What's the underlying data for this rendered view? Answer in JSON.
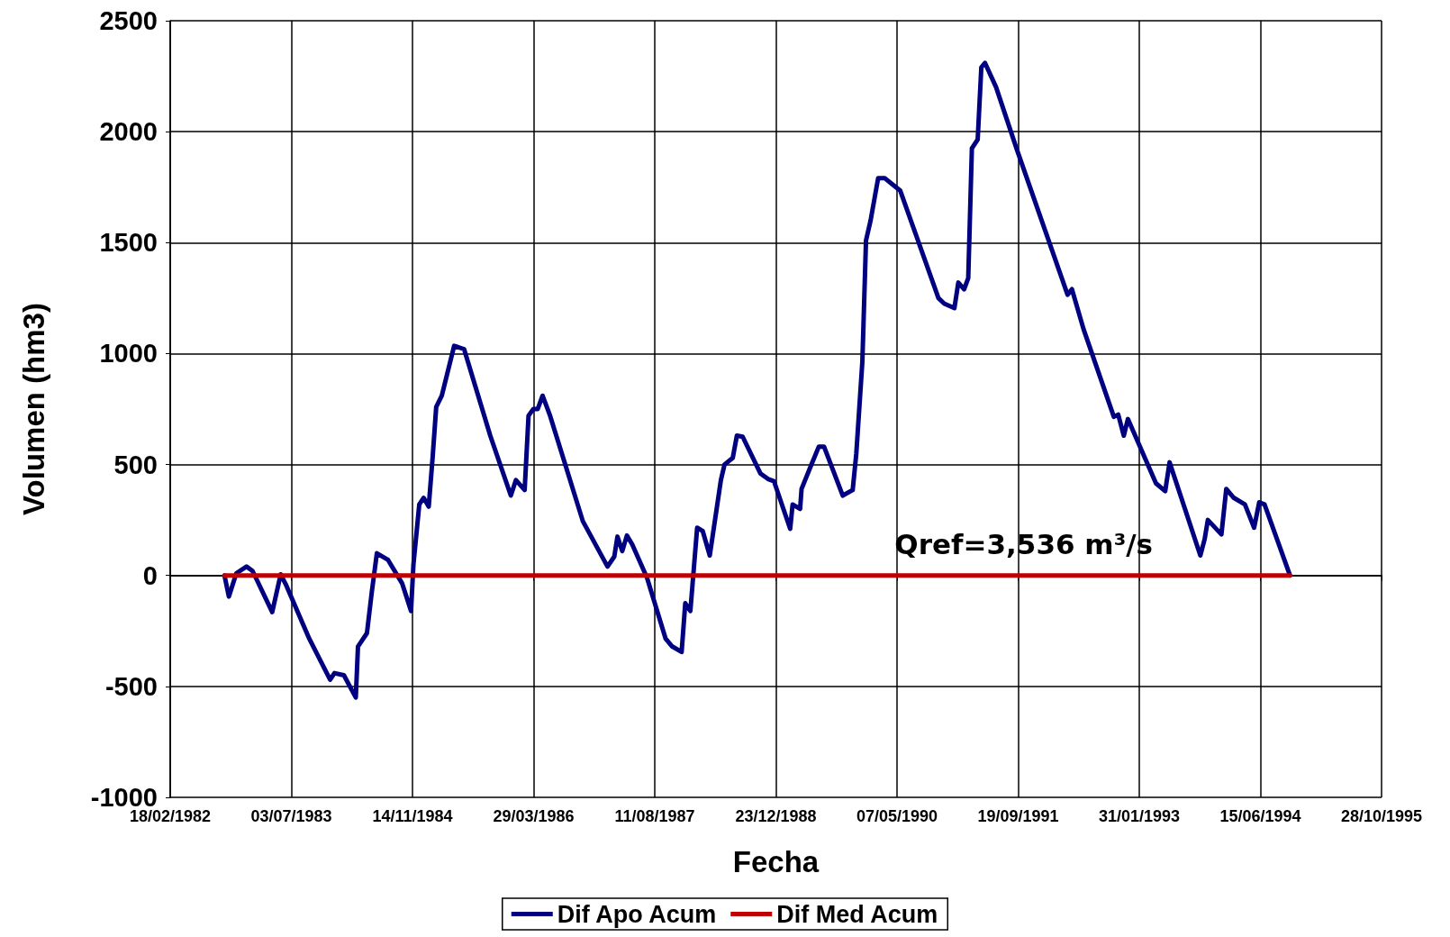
{
  "chart_data": {
    "type": "line",
    "xlabel": "Fecha",
    "ylabel": "Volumen (hm3)",
    "xlim": [
      "1982-02-18",
      "1995-10-28"
    ],
    "xticks": [
      {
        "value": "1982-02-18",
        "label": "18/02/1982"
      },
      {
        "value": "1983-07-03",
        "label": "03/07/1983"
      },
      {
        "value": "1984-11-14",
        "label": "14/11/1984"
      },
      {
        "value": "1986-03-29",
        "label": "29/03/1986"
      },
      {
        "value": "1987-08-11",
        "label": "11/08/1987"
      },
      {
        "value": "1988-12-23",
        "label": "23/12/1988"
      },
      {
        "value": "1990-05-07",
        "label": "07/05/1990"
      },
      {
        "value": "1991-09-19",
        "label": "19/09/1991"
      },
      {
        "value": "1993-01-31",
        "label": "31/01/1993"
      },
      {
        "value": "1994-06-15",
        "label": "15/06/1994"
      },
      {
        "value": "1995-10-28",
        "label": "28/10/1995"
      }
    ],
    "ylim": [
      -1000,
      2500
    ],
    "yticks": [
      -1000,
      -500,
      0,
      500,
      1000,
      1500,
      2000,
      2500
    ],
    "grid": true,
    "legend": "bottom",
    "marker": "none",
    "line_style": "solid",
    "annotations": [
      "Qref=3,536 m³/s"
    ],
    "series": [
      {
        "name": "Dif Apo Acum",
        "color": "#000080",
        "x": [
          "1982-09-30",
          "1982-10-18",
          "1982-11-18",
          "1982-12-30",
          "1983-01-24",
          "1983-04-15",
          "1983-05-20",
          "1983-06-10",
          "1983-09-15",
          "1983-12-10",
          "1983-12-28",
          "1984-02-05",
          "1984-03-25",
          "1984-04-03",
          "1984-05-10",
          "1984-05-30",
          "1984-06-20",
          "1984-08-05",
          "1984-10-02",
          "1984-11-08",
          "1984-11-18",
          "1984-12-12",
          "1984-12-30",
          "1985-01-20",
          "1985-02-05",
          "1985-02-20",
          "1985-03-15",
          "1985-05-05",
          "1985-06-15",
          "1985-10-01",
          "1985-12-25",
          "1986-01-15",
          "1986-02-20",
          "1986-03-08",
          "1986-03-28",
          "1986-04-15",
          "1986-05-05",
          "1986-06-05",
          "1986-10-18",
          "1987-01-28",
          "1987-02-25",
          "1987-03-10",
          "1987-03-30",
          "1987-04-18",
          "1987-05-10",
          "1987-07-10",
          "1987-09-25",
          "1987-10-22",
          "1987-11-30",
          "1987-12-15",
          "1988-01-05",
          "1988-02-02",
          "1988-02-25",
          "1988-03-25",
          "1988-05-10",
          "1988-05-25",
          "1988-06-28",
          "1988-07-15",
          "1988-08-08",
          "1988-10-20",
          "1988-11-20",
          "1988-12-15",
          "1989-02-20",
          "1989-03-02",
          "1989-04-02",
          "1989-04-08",
          "1989-05-15",
          "1989-06-18",
          "1989-07-10",
          "1989-09-25",
          "1989-11-05",
          "1989-11-20",
          "1989-12-15",
          "1989-12-30",
          "1990-01-18",
          "1990-02-18",
          "1990-03-18",
          "1990-04-15",
          "1990-05-20",
          "1990-10-25",
          "1990-11-18",
          "1990-12-30",
          "1991-01-15",
          "1991-02-08",
          "1991-02-25",
          "1991-03-12",
          "1991-04-05",
          "1991-04-20",
          "1991-05-05",
          "1991-06-20",
          "1991-09-12",
          "1992-04-10",
          "1992-04-28",
          "1992-06-15",
          "1992-10-18",
          "1992-11-05",
          "1992-11-28",
          "1992-12-15",
          "1993-04-10",
          "1993-05-18",
          "1993-06-05",
          "1993-10-10",
          "1993-10-28",
          "1993-11-10",
          "1994-01-05",
          "1994-01-25",
          "1994-02-25",
          "1994-04-12",
          "1994-05-20",
          "1994-06-10",
          "1994-07-02",
          "1994-10-15"
        ],
        "values": [
          0,
          -95,
          10,
          40,
          20,
          -165,
          5,
          -40,
          -285,
          -470,
          -440,
          -450,
          -550,
          -320,
          -260,
          -75,
          100,
          70,
          -35,
          -160,
          50,
          320,
          350,
          310,
          530,
          760,
          810,
          1035,
          1020,
          630,
          360,
          430,
          385,
          720,
          750,
          750,
          810,
          720,
          245,
          40,
          85,
          175,
          110,
          180,
          140,
          -10,
          -285,
          -320,
          -345,
          -125,
          -160,
          215,
          200,
          90,
          430,
          500,
          530,
          630,
          625,
          460,
          435,
          425,
          210,
          320,
          300,
          390,
          490,
          580,
          580,
          360,
          385,
          550,
          965,
          1510,
          1600,
          1790,
          1790,
          1765,
          1735,
          1250,
          1225,
          1205,
          1320,
          1290,
          1340,
          1925,
          1965,
          2290,
          2310,
          2200,
          1925,
          1265,
          1290,
          1110,
          715,
          725,
          630,
          705,
          415,
          380,
          510,
          90,
          165,
          250,
          185,
          390,
          350,
          320,
          215,
          330,
          320,
          0
        ]
      },
      {
        "name": "Dif Med Acum",
        "color": "#c00000",
        "x": [
          "1982-09-30",
          "1994-10-15"
        ],
        "values": [
          0,
          0
        ]
      }
    ]
  }
}
